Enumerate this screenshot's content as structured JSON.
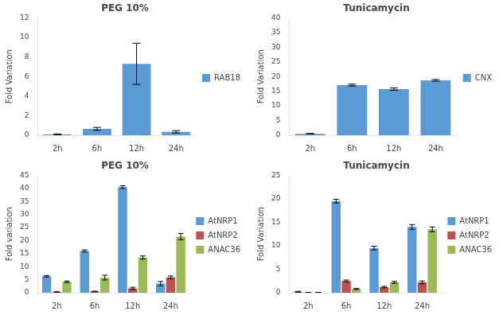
{
  "chart_data": [
    {
      "type": "bar",
      "title": "PEG 10%",
      "ylabel": "Fold Variation",
      "categories": [
        "2h",
        "6h",
        "12h",
        "24h"
      ],
      "series": [
        {
          "name": "RAB18",
          "color": "#5B9BD5",
          "values": [
            0.08,
            0.65,
            7.3,
            0.35
          ],
          "errors": [
            0.05,
            0.15,
            2.1,
            0.12
          ]
        }
      ],
      "ylim": [
        0,
        12
      ],
      "yticks": [
        0,
        2,
        4,
        6,
        8,
        10,
        12
      ],
      "grid": false,
      "legend": "right"
    },
    {
      "type": "bar",
      "title": "Tunicamycin",
      "ylabel": "Fold Variation",
      "categories": [
        "2h",
        "6h",
        "12h",
        "24h"
      ],
      "series": [
        {
          "name": "CNX",
          "color": "#5B9BD5",
          "values": [
            0.5,
            17.1,
            15.7,
            18.7
          ],
          "errors": [
            0.1,
            0.3,
            0.4,
            0.3
          ]
        }
      ],
      "ylim": [
        0,
        40
      ],
      "yticks": [
        0,
        5,
        10,
        15,
        20,
        25,
        30,
        35,
        40
      ],
      "grid": false,
      "legend": "right"
    },
    {
      "type": "bar",
      "title": "PEG 10%",
      "ylabel": "Fold variation",
      "categories": [
        "2h",
        "6h",
        "12h",
        "24h"
      ],
      "series": [
        {
          "name": "AtNRP1",
          "color": "#5B9BD5",
          "values": [
            6.3,
            16.0,
            40.5,
            3.5
          ],
          "errors": [
            0.3,
            0.4,
            0.5,
            0.8
          ]
        },
        {
          "name": "AtNRP2",
          "color": "#C0504D",
          "values": [
            0.3,
            0.5,
            1.7,
            5.9
          ],
          "errors": [
            0.1,
            0.1,
            0.4,
            0.5
          ]
        },
        {
          "name": "ANAC36",
          "color": "#9BBB59",
          "values": [
            4.2,
            5.8,
            13.5,
            21.5
          ],
          "errors": [
            0.3,
            0.9,
            0.6,
            1.2
          ]
        }
      ],
      "ylim": [
        0,
        45
      ],
      "yticks": [
        0,
        5,
        10,
        15,
        20,
        25,
        30,
        35,
        40,
        45
      ],
      "grid": false,
      "legend": "right"
    },
    {
      "type": "bar",
      "title": "Tunicamycin",
      "ylabel": "Fold Variation",
      "categories": [
        "2h",
        "6h",
        "12h",
        "24h"
      ],
      "series": [
        {
          "name": "AtNRP1",
          "color": "#5B9BD5",
          "values": [
            0.2,
            19.5,
            9.5,
            14.0
          ],
          "errors": [
            0.1,
            0.4,
            0.4,
            0.5
          ]
        },
        {
          "name": "AtNRP2",
          "color": "#C0504D",
          "values": [
            0.05,
            2.5,
            1.2,
            2.2
          ],
          "errors": [
            0.02,
            0.2,
            0.15,
            0.3
          ]
        },
        {
          "name": "ANAC36",
          "color": "#9BBB59",
          "values": [
            0.05,
            0.8,
            2.2,
            13.5
          ],
          "errors": [
            0.02,
            0.1,
            0.2,
            0.5
          ]
        }
      ],
      "ylim": [
        0,
        25
      ],
      "yticks": [
        0,
        5,
        10,
        15,
        20,
        25
      ],
      "grid": false,
      "legend": "right"
    }
  ]
}
